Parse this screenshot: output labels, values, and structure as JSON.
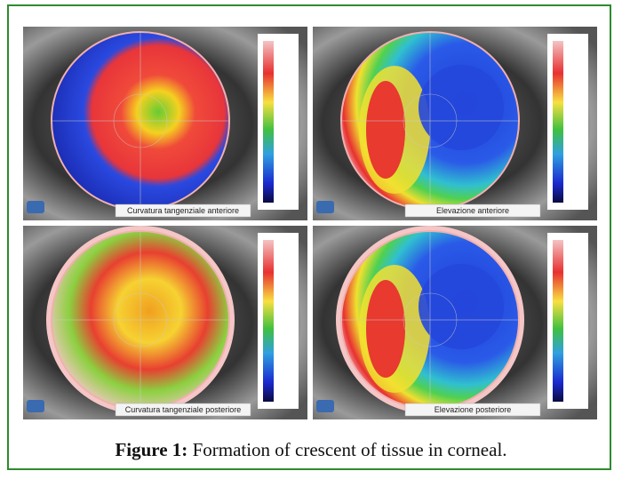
{
  "figure": {
    "panels": [
      {
        "label": "Curvatura tangenziale anteriore"
      },
      {
        "label": "Elevazione anteriore"
      },
      {
        "label": "Curvatura tangenziale posteriore"
      },
      {
        "label": "Elevazione posteriore"
      }
    ],
    "caption": {
      "label": "Figure 1:",
      "text": "Formation of crescent of tissue in corneal."
    }
  }
}
